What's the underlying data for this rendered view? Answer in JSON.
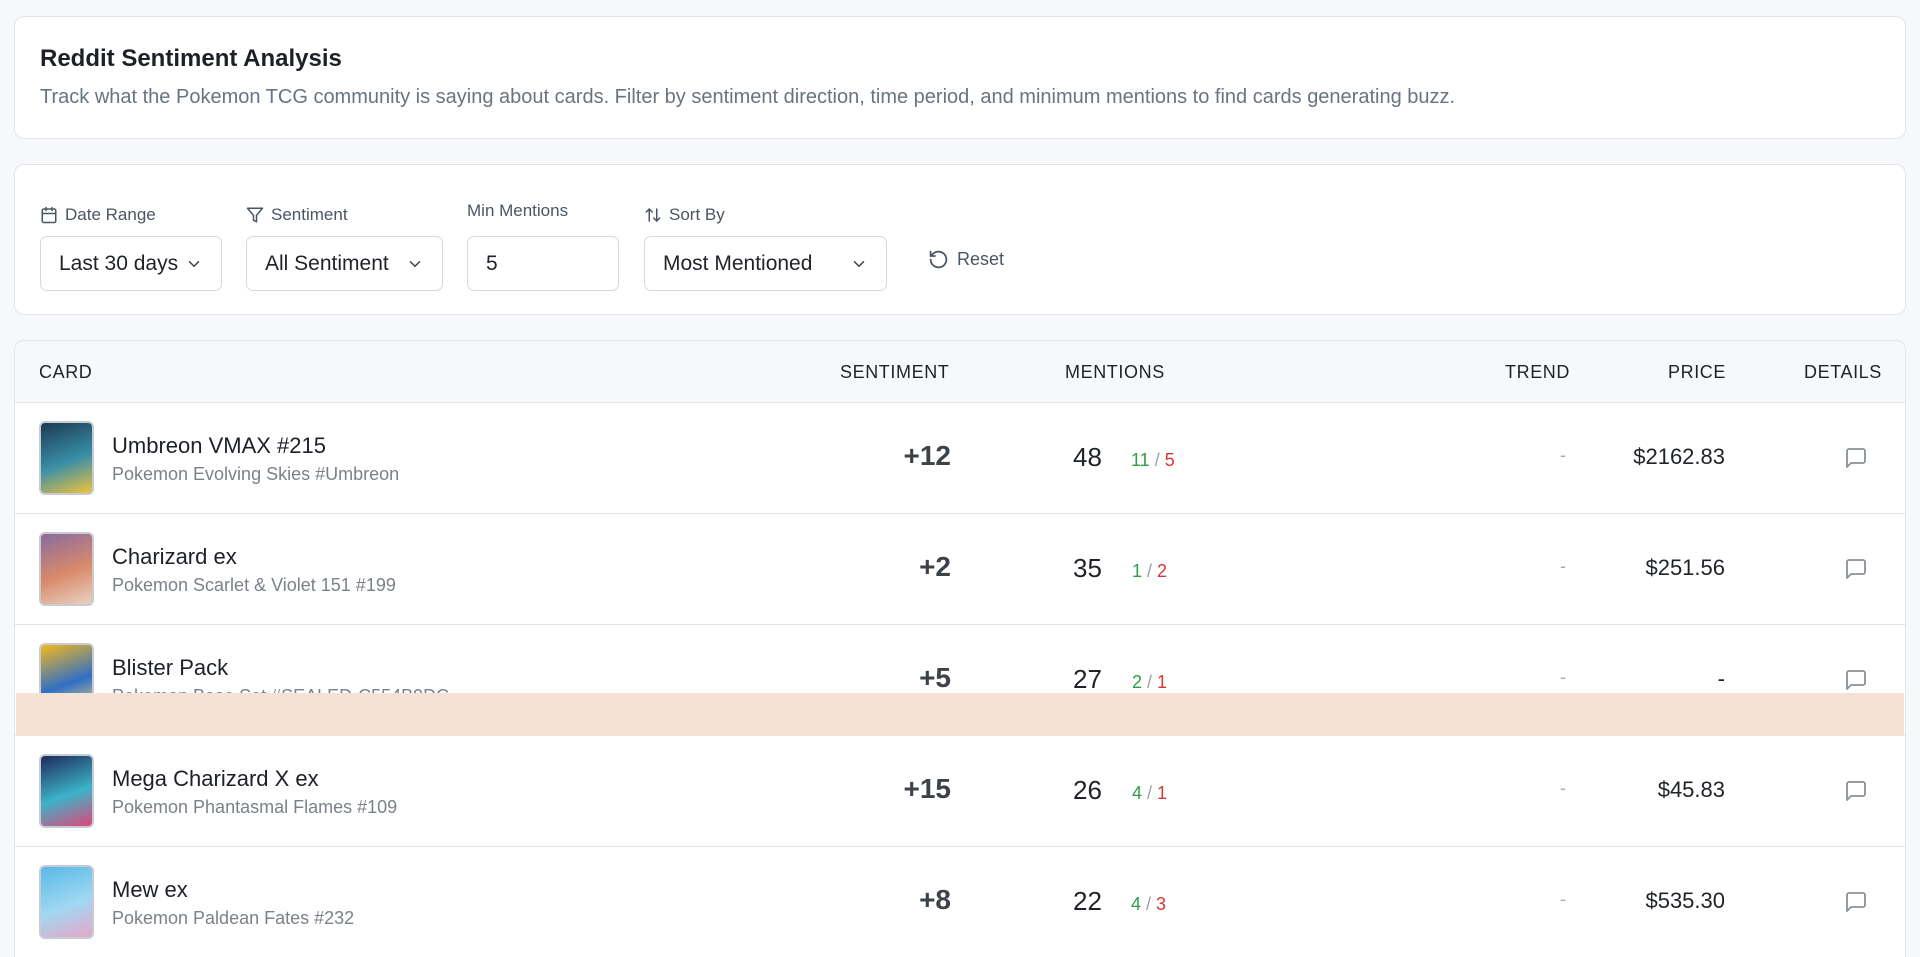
{
  "header": {
    "title": "Reddit Sentiment Analysis",
    "description": "Track what the Pokemon TCG community is saying about cards. Filter by sentiment direction, time period, and minimum mentions to find cards generating buzz."
  },
  "filters": {
    "date_range": {
      "label": "Date Range",
      "value": "Last 30 days"
    },
    "sentiment": {
      "label": "Sentiment",
      "value": "All Sentiment"
    },
    "min_mentions": {
      "label": "Min Mentions",
      "value": "5"
    },
    "sort_by": {
      "label": "Sort By",
      "value": "Most Mentioned"
    },
    "reset_label": "Reset"
  },
  "table": {
    "headers": {
      "card": "CARD",
      "sentiment": "SENTIMENT",
      "mentions": "MENTIONS",
      "trend": "TREND",
      "price": "PRICE",
      "details": "DETAILS"
    },
    "rows": [
      {
        "name": "Umbreon VMAX #215",
        "set": "Pokemon Evolving Skies #Umbreon",
        "sentiment": "+12",
        "mentions": "48",
        "positive": "11",
        "negative": "5",
        "trend": "-",
        "price": "$2162.83",
        "thumb_colors": [
          "#1c3a52",
          "#3a8fa8",
          "#f0c23a"
        ]
      },
      {
        "name": "Charizard ex",
        "set": "Pokemon Scarlet & Violet 151 #199",
        "sentiment": "+2",
        "mentions": "35",
        "positive": "1",
        "negative": "2",
        "trend": "-",
        "price": "$251.56",
        "thumb_colors": [
          "#8a6b9e",
          "#d98a6a",
          "#e8d2c4"
        ]
      },
      {
        "name": "Blister Pack",
        "set": "Pokemon Base Set #SEALED-C554B9DC",
        "sentiment": "+5",
        "mentions": "27",
        "positive": "2",
        "negative": "1",
        "trend": "-",
        "price": "-",
        "thumb_colors": [
          "#f3b81c",
          "#2f6fc6",
          "#ffe27a"
        ]
      },
      {
        "name": "Mega Charizard X ex",
        "set": "Pokemon Phantasmal Flames #109",
        "sentiment": "+15",
        "mentions": "26",
        "positive": "4",
        "negative": "1",
        "trend": "-",
        "price": "$45.83",
        "thumb_colors": [
          "#1f2a5a",
          "#3bb3c8",
          "#e0467a"
        ]
      },
      {
        "name": "Mew ex",
        "set": "Pokemon Paldean Fates #232",
        "sentiment": "+8",
        "mentions": "22",
        "positive": "4",
        "negative": "3",
        "trend": "-",
        "price": "$535.30",
        "thumb_colors": [
          "#5ab8e6",
          "#9fd8f2",
          "#e8a6c8"
        ]
      }
    ]
  },
  "colors": {
    "positive": "#2e9e45",
    "negative": "#d63838",
    "highlight_overlay": "#f5e1d5"
  },
  "icons": {
    "date_range": "calendar-icon",
    "sentiment": "filter-icon",
    "sort_by": "sort-arrows-icon",
    "reset": "rotate-ccw-icon",
    "details": "message-square-icon",
    "select": "chevron-down-icon"
  }
}
